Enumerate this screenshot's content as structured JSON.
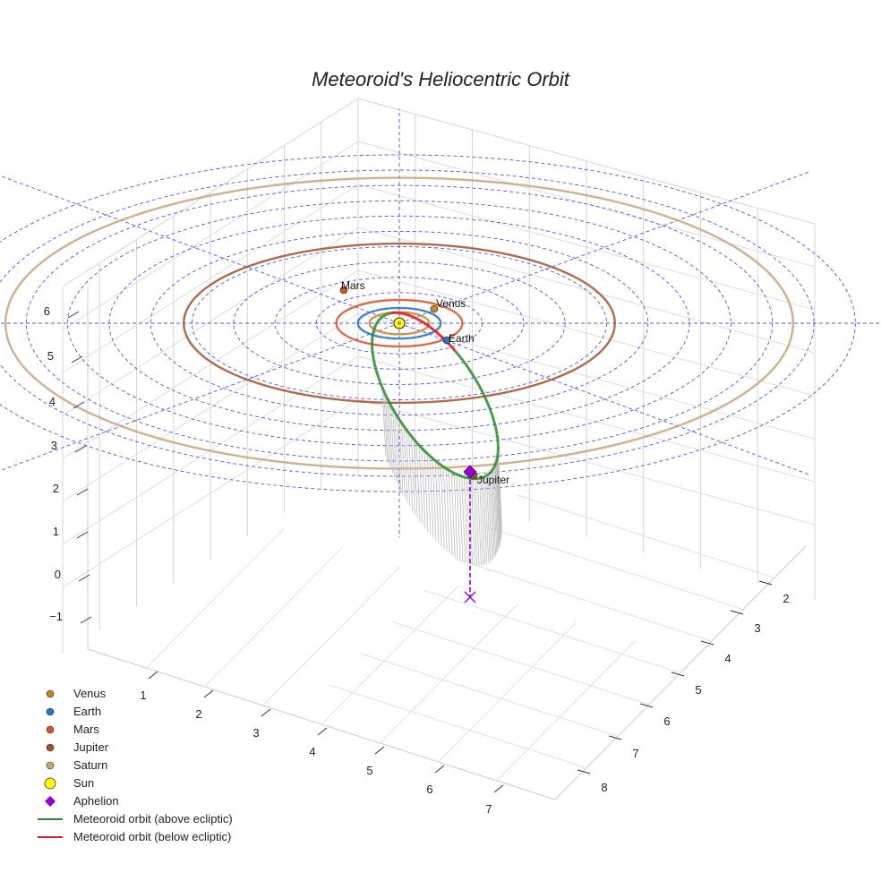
{
  "chart_data": {
    "type": "scatter",
    "title": "Meteoroid's Heliocentric Orbit",
    "z_ticks": [
      "−1",
      "0",
      "1",
      "2",
      "3",
      "4",
      "5",
      "6"
    ],
    "x_ticks": [
      "1",
      "2",
      "3",
      "4",
      "5",
      "6",
      "7"
    ],
    "y_ticks": [
      "2",
      "3",
      "4",
      "5",
      "6",
      "7",
      "8"
    ],
    "ecliptic_grid_radii_au": [
      1,
      2,
      3,
      4,
      5,
      6,
      7,
      8,
      9,
      10,
      11
    ],
    "planets": [
      {
        "name": "Venus",
        "orbit_radius_au": 0.72,
        "color": "#c8822a",
        "label_shown": true
      },
      {
        "name": "Earth",
        "orbit_radius_au": 1.0,
        "color": "#2a77c8",
        "label_shown": true
      },
      {
        "name": "Mars",
        "orbit_radius_au": 1.52,
        "color": "#d2552a",
        "label_shown": true
      },
      {
        "name": "Jupiter",
        "orbit_radius_au": 5.2,
        "color": "#a0522d",
        "label_shown": true
      },
      {
        "name": "Saturn",
        "orbit_radius_au": 9.5,
        "color": "#c8a27a",
        "label_shown": false
      }
    ],
    "sun": {
      "name": "Sun",
      "color": "#ffff00"
    },
    "aphelion": {
      "name": "Aphelion",
      "color": "#9400d3",
      "marker": "diamond"
    },
    "series": [
      {
        "name": "Meteoroid orbit (above ecliptic)",
        "color": "#2e8b2e"
      },
      {
        "name": "Meteoroid orbit (below ecliptic)",
        "color": "#e02020"
      }
    ],
    "legend_position": "bottom-left",
    "grid": true
  }
}
